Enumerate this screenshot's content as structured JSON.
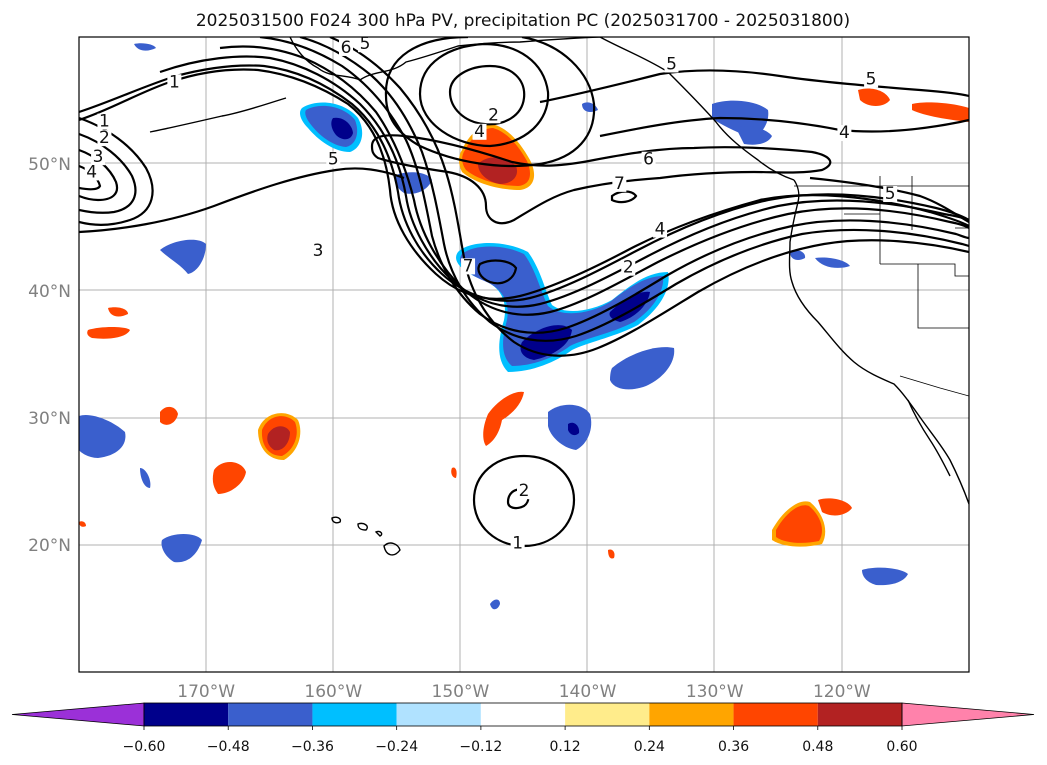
{
  "title": "2025031500 F024 300 hPa PV, precipitation PC (2025031700 - 2025031800)",
  "map": {
    "lon_range": [
      -180,
      -110
    ],
    "lat_range": [
      10,
      60
    ],
    "lat_labels": [
      {
        "lat": 50,
        "text": "50°N"
      },
      {
        "lat": 40,
        "text": "40°N"
      },
      {
        "lat": 30,
        "text": "30°N"
      },
      {
        "lat": 20,
        "text": "20°N"
      }
    ],
    "lon_labels": [
      {
        "lon": -170,
        "text": "170°W"
      },
      {
        "lon": -160,
        "text": "160°W"
      },
      {
        "lon": -150,
        "text": "150°W"
      },
      {
        "lon": -140,
        "text": "140°W"
      },
      {
        "lon": -130,
        "text": "130°W"
      },
      {
        "lon": -120,
        "text": "120°W"
      }
    ],
    "contour_labels": [
      {
        "text": "1",
        "lon": -178,
        "lat": 53.1
      },
      {
        "text": "2",
        "lon": -178,
        "lat": 51.8
      },
      {
        "text": "3",
        "lon": -178.5,
        "lat": 50.3
      },
      {
        "text": "4",
        "lon": -179,
        "lat": 49.1
      },
      {
        "text": "1",
        "lon": -172.5,
        "lat": 56.2
      },
      {
        "text": "6",
        "lon": -159,
        "lat": 58.9
      },
      {
        "text": "5",
        "lon": -157.5,
        "lat": 59.2
      },
      {
        "text": "5",
        "lon": -160,
        "lat": 50.1
      },
      {
        "text": "3",
        "lon": -161.2,
        "lat": 42.9
      },
      {
        "text": "2",
        "lon": -147.4,
        "lat": 53.6
      },
      {
        "text": "4",
        "lon": -148.5,
        "lat": 52.3
      },
      {
        "text": "7",
        "lon": -149.4,
        "lat": 41.7
      },
      {
        "text": "7",
        "lon": -137.5,
        "lat": 48.2
      },
      {
        "text": "6",
        "lon": -135.2,
        "lat": 50.1
      },
      {
        "text": "4",
        "lon": -134.3,
        "lat": 44.6
      },
      {
        "text": "2",
        "lon": -136.8,
        "lat": 41.6
      },
      {
        "text": "5",
        "lon": -133.4,
        "lat": 57.6
      },
      {
        "text": "4",
        "lon": -119.8,
        "lat": 52.2
      },
      {
        "text": "5",
        "lon": -117.7,
        "lat": 56.4
      },
      {
        "text": "5",
        "lon": -116.2,
        "lat": 47.4
      },
      {
        "text": "2",
        "lon": -145,
        "lat": 24.0
      },
      {
        "text": "1",
        "lon": -145.5,
        "lat": 19.9
      }
    ]
  },
  "colorbar": {
    "levels": [
      -0.6,
      -0.48,
      -0.36,
      -0.24,
      -0.12,
      0.12,
      0.24,
      0.36,
      0.48,
      0.6
    ],
    "tick_labels": [
      "−0.60",
      "−0.48",
      "−0.36",
      "−0.24",
      "−0.12",
      "0.12",
      "0.24",
      "0.36",
      "0.48",
      "0.60"
    ],
    "colors": [
      "#9b30d8",
      "#00008b",
      "#3a5fcd",
      "#00bfff",
      "#b0e2ff",
      "#ffffff",
      "#ffec8b",
      "#ffa500",
      "#ff4500",
      "#b22222",
      "#ff82ab"
    ]
  }
}
